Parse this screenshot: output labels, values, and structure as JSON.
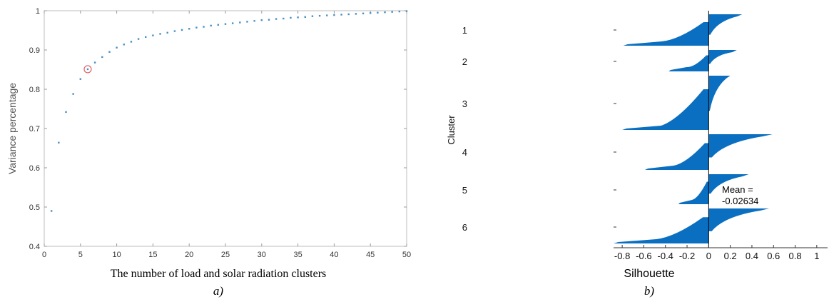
{
  "chart_data": [
    {
      "type": "scatter",
      "xlabel": "Variance percentage",
      "x_title": "The number of load and solar radiation clusters",
      "ylabel": "Variance percentage",
      "xlim": [
        0,
        50
      ],
      "ylim": [
        0.4,
        1.0
      ],
      "xticks": [
        0,
        5,
        10,
        15,
        20,
        25,
        30,
        35,
        40,
        45,
        50
      ],
      "yticks": [
        0.4,
        0.5,
        0.6,
        0.7,
        0.8,
        0.9,
        1
      ],
      "caption": "a)",
      "points": [
        [
          1,
          0.49
        ],
        [
          2,
          0.664
        ],
        [
          3,
          0.742
        ],
        [
          4,
          0.788
        ],
        [
          5,
          0.826
        ],
        [
          6,
          0.851
        ],
        [
          7,
          0.868
        ],
        [
          8,
          0.882
        ],
        [
          9,
          0.895
        ],
        [
          10,
          0.906
        ],
        [
          11,
          0.914
        ],
        [
          12,
          0.921
        ],
        [
          13,
          0.928
        ],
        [
          14,
          0.933
        ],
        [
          15,
          0.937
        ],
        [
          16,
          0.941
        ],
        [
          17,
          0.944
        ],
        [
          18,
          0.948
        ],
        [
          19,
          0.951
        ],
        [
          20,
          0.954
        ],
        [
          21,
          0.957
        ],
        [
          22,
          0.959
        ],
        [
          23,
          0.962
        ],
        [
          24,
          0.964
        ],
        [
          25,
          0.966
        ],
        [
          26,
          0.968
        ],
        [
          27,
          0.97
        ],
        [
          28,
          0.972
        ],
        [
          29,
          0.974
        ],
        [
          30,
          0.976
        ],
        [
          31,
          0.977
        ],
        [
          32,
          0.979
        ],
        [
          33,
          0.98
        ],
        [
          34,
          0.982
        ],
        [
          35,
          0.983
        ],
        [
          36,
          0.984
        ],
        [
          37,
          0.986
        ],
        [
          38,
          0.987
        ],
        [
          39,
          0.988
        ],
        [
          40,
          0.989
        ],
        [
          41,
          0.99
        ],
        [
          42,
          0.991
        ],
        [
          43,
          0.992
        ],
        [
          44,
          0.993
        ],
        [
          45,
          0.994
        ],
        [
          46,
          0.995
        ],
        [
          47,
          0.996
        ],
        [
          48,
          0.997
        ],
        [
          49,
          0.998
        ],
        [
          50,
          0.999
        ]
      ],
      "highlight": {
        "x": 6,
        "y": 0.851
      },
      "point_color": "#4a90c2",
      "highlight_color": "#e06060"
    },
    {
      "type": "bar",
      "orientation": "horizontal",
      "xlabel": "Silhouette",
      "ylabel": "Cluster",
      "xlim": [
        -0.88,
        1.1
      ],
      "xticks": [
        -0.8,
        -0.6,
        -0.4,
        -0.2,
        0,
        0.2,
        0.4,
        0.6,
        0.8,
        1
      ],
      "xtick_labels": [
        "-0.8",
        "-0.6",
        "-0.4",
        "-0.2",
        "0",
        "0.2",
        "0.4",
        "0.6",
        "0.8",
        "1"
      ],
      "categories": [
        "1",
        "2",
        "3",
        "4",
        "5",
        "6"
      ],
      "mean_label": "Mean =",
      "mean_value": "-0.02634",
      "caption": "b)",
      "bar_color": "#0a6fc0",
      "clusters": [
        {
          "name": "1",
          "pos": 0.31,
          "neg": -0.79
        },
        {
          "name": "2",
          "pos": 0.26,
          "neg": -0.37
        },
        {
          "name": "3",
          "pos": 0.2,
          "neg": -0.8
        },
        {
          "name": "4",
          "pos": 0.59,
          "neg": -0.59
        },
        {
          "name": "5",
          "pos": 0.37,
          "neg": -0.28
        },
        {
          "name": "6",
          "pos": 0.56,
          "neg": -0.88
        }
      ]
    }
  ]
}
